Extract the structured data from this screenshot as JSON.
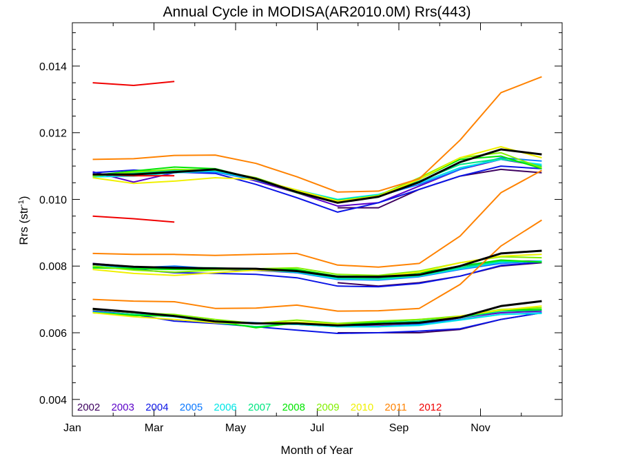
{
  "chart_data": {
    "type": "line",
    "title": "Annual Cycle in MODISA(AR2010.0M) Rrs(443)",
    "xlabel": "Month of Year",
    "ylabel": "Rrs (str",
    "ylabel_sup": "-1",
    "ylabel_tail": ")",
    "xlim": [
      1,
      13
    ],
    "ylim": [
      0.0035,
      0.0153
    ],
    "x_ticks": [
      {
        "value": 1,
        "label": "Jan"
      },
      {
        "value": 3,
        "label": "Mar"
      },
      {
        "value": 5,
        "label": "May"
      },
      {
        "value": 7,
        "label": "Jul"
      },
      {
        "value": 9,
        "label": "Sep"
      },
      {
        "value": 11,
        "label": "Nov"
      }
    ],
    "y_ticks": [
      "0.004",
      "0.006",
      "0.008",
      "0.010",
      "0.012",
      "0.014"
    ],
    "x": [
      1.5,
      2.5,
      3.5,
      4.5,
      5.5,
      6.5,
      7.5,
      8.5,
      9.5,
      10.5,
      11.5,
      12.5
    ],
    "series": [
      {
        "name": "2002",
        "color": "#3d005f",
        "lines": [
          [
            null,
            null,
            null,
            null,
            null,
            null,
            0.00975,
            0.00975,
            0.0103,
            0.0107,
            0.0109,
            0.0108
          ],
          [
            null,
            null,
            null,
            null,
            null,
            null,
            0.0075,
            0.0074,
            0.0075,
            0.0077,
            0.008,
            0.0081
          ],
          [
            null,
            null,
            null,
            null,
            null,
            null,
            0.006,
            0.006,
            0.006,
            0.0061,
            0.0064,
            0.0066
          ]
        ]
      },
      {
        "name": "2003",
        "color": "#5a00c8",
        "lines": [
          [
            0.01083,
            0.01052,
            0.0108,
            0.01088,
            0.01055,
            0.0102,
            0.0098,
            0.0099,
            0.0104,
            0.0109,
            0.0112,
            0.011
          ],
          [
            0.00808,
            0.00798,
            0.00792,
            0.0079,
            0.00787,
            0.0078,
            0.0077,
            0.00765,
            0.00775,
            0.008,
            0.00815,
            0.00815
          ],
          [
            0.0067,
            0.0066,
            0.0065,
            0.00635,
            0.00628,
            0.00625,
            0.0062,
            0.0062,
            0.00625,
            0.00645,
            0.0066,
            0.00665
          ]
        ]
      },
      {
        "name": "2004",
        "color": "#0a14e6",
        "lines": [
          [
            0.0108,
            0.01088,
            0.01082,
            0.01078,
            0.01045,
            0.01005,
            0.00962,
            0.0099,
            0.0103,
            0.0107,
            0.011,
            0.01092
          ],
          [
            0.008,
            0.0079,
            0.0078,
            0.00778,
            0.00775,
            0.00765,
            0.0074,
            0.00738,
            0.00748,
            0.0077,
            0.00802,
            0.00812
          ],
          [
            0.00665,
            0.00655,
            0.00635,
            0.00628,
            0.00618,
            0.00608,
            0.00598,
            0.006,
            0.00605,
            0.00612,
            0.0064,
            0.0066
          ]
        ]
      },
      {
        "name": "2005",
        "color": "#0a78ff",
        "lines": [
          [
            0.01075,
            0.01078,
            0.01085,
            0.01082,
            0.01058,
            0.01025,
            0.00995,
            0.0101,
            0.01045,
            0.0109,
            0.01125,
            0.01115
          ],
          [
            0.00805,
            0.00795,
            0.008,
            0.00792,
            0.0079,
            0.0078,
            0.0076,
            0.00758,
            0.00768,
            0.0079,
            0.00808,
            0.00815
          ],
          [
            0.00672,
            0.00662,
            0.00652,
            0.00635,
            0.0063,
            0.00625,
            0.00618,
            0.00618,
            0.00625,
            0.0064,
            0.00655,
            0.0066
          ]
        ]
      },
      {
        "name": "2006",
        "color": "#00e6e6",
        "lines": [
          [
            0.01068,
            0.0107,
            0.0108,
            0.01085,
            0.0106,
            0.01028,
            0.01,
            0.01015,
            0.0105,
            0.01095,
            0.0112,
            0.01105
          ],
          [
            0.008,
            0.00792,
            0.0079,
            0.00792,
            0.00788,
            0.00782,
            0.00762,
            0.0076,
            0.0077,
            0.00792,
            0.00812,
            0.00815
          ],
          [
            0.00662,
            0.00655,
            0.00648,
            0.00632,
            0.00628,
            0.00625,
            0.00618,
            0.00618,
            0.00622,
            0.00638,
            0.00655,
            0.00658
          ]
        ]
      },
      {
        "name": "2007",
        "color": "#00e682",
        "lines": [
          [
            0.0107,
            0.0108,
            0.01088,
            0.0109,
            0.0106,
            0.01025,
            0.00998,
            0.01012,
            0.01055,
            0.01105,
            0.01122,
            0.011
          ],
          [
            0.00795,
            0.00795,
            0.00795,
            0.00795,
            0.0079,
            0.00785,
            0.00765,
            0.00762,
            0.00772,
            0.00795,
            0.00815,
            0.00812
          ],
          [
            0.0066,
            0.00655,
            0.0065,
            0.0063,
            0.00618,
            0.00628,
            0.00622,
            0.00628,
            0.00635,
            0.00645,
            0.00665,
            0.00668
          ]
        ]
      },
      {
        "name": "2008",
        "color": "#00e600",
        "lines": [
          [
            0.01072,
            0.01085,
            0.01097,
            0.01092,
            0.01062,
            0.0102,
            0.0099,
            0.01008,
            0.0106,
            0.0112,
            0.0113,
            0.01092
          ],
          [
            0.00795,
            0.00792,
            0.0079,
            0.0079,
            0.00792,
            0.0079,
            0.0077,
            0.00768,
            0.0078,
            0.008,
            0.00818,
            0.00812
          ],
          [
            0.0066,
            0.00652,
            0.0065,
            0.00635,
            0.00615,
            0.0063,
            0.00625,
            0.00632,
            0.0064,
            0.00648,
            0.00668,
            0.0067
          ]
        ]
      },
      {
        "name": "2009",
        "color": "#82f000",
        "lines": [
          [
            0.0107,
            0.01082,
            0.0109,
            0.01088,
            0.01065,
            0.01025,
            0.00995,
            0.01012,
            0.01065,
            0.01125,
            0.0114,
            0.01095
          ],
          [
            0.008,
            0.00788,
            0.00782,
            0.00788,
            0.00792,
            0.00795,
            0.00775,
            0.00772,
            0.00785,
            0.0081,
            0.00828,
            0.00825
          ],
          [
            0.0067,
            0.0066,
            0.00655,
            0.0064,
            0.00628,
            0.00638,
            0.00628,
            0.00635,
            0.0064,
            0.0065,
            0.0067,
            0.00675
          ]
        ]
      },
      {
        "name": "2010",
        "color": "#f0f000",
        "lines": [
          [
            0.01065,
            0.01048,
            0.01055,
            0.01065,
            0.0106,
            0.01028,
            0.00995,
            0.0101,
            0.0106,
            0.01125,
            0.01158,
            0.01125
          ],
          [
            0.0079,
            0.00778,
            0.00772,
            0.0078,
            0.00788,
            0.00785,
            0.00768,
            0.00768,
            0.00782,
            0.0081,
            0.0083,
            0.00835
          ],
          [
            0.0066,
            0.00648,
            0.0064,
            0.0063,
            0.00628,
            0.00632,
            0.00625,
            0.00625,
            0.0063,
            0.0065,
            0.00668,
            0.0068
          ]
        ]
      },
      {
        "name": "2011",
        "color": "#ff8200",
        "lines": [
          [
            0.0112,
            0.01122,
            0.01132,
            0.01133,
            0.01108,
            0.01068,
            0.01022,
            0.01025,
            0.01062,
            0.01178,
            0.0132,
            0.01368
          ],
          [
            0.00838,
            0.00835,
            0.00835,
            0.00832,
            0.00835,
            0.00838,
            0.00803,
            0.00797,
            0.00808,
            0.0089,
            0.0102,
            0.01087
          ],
          [
            0.007,
            0.00695,
            0.00693,
            0.00673,
            0.00674,
            0.00683,
            0.00665,
            0.00666,
            0.00673,
            0.00745,
            0.0086,
            0.00938
          ]
        ]
      },
      {
        "name": "2012",
        "color": "#f00000",
        "lines": [
          [
            0.0135,
            0.01342,
            0.01354
          ],
          [
            0.01075,
            0.01071,
            0.01071
          ],
          [
            0.0095,
            0.00942,
            0.00932
          ]
        ]
      }
    ],
    "mean_lines": {
      "color": "#000000",
      "lines": [
        [
          0.01075,
          0.01075,
          0.01082,
          0.0109,
          0.01062,
          0.01022,
          0.0099,
          0.01008,
          0.01052,
          0.01112,
          0.0115,
          0.01135
        ],
        [
          0.00806,
          0.00798,
          0.00795,
          0.00793,
          0.00792,
          0.00785,
          0.00768,
          0.00768,
          0.00774,
          0.008,
          0.00838,
          0.00846
        ],
        [
          0.00672,
          0.00662,
          0.0065,
          0.00634,
          0.00628,
          0.00628,
          0.00622,
          0.00626,
          0.0063,
          0.00646,
          0.0068,
          0.00695
        ]
      ]
    },
    "grid": false,
    "legend_position": "bottom-left"
  }
}
